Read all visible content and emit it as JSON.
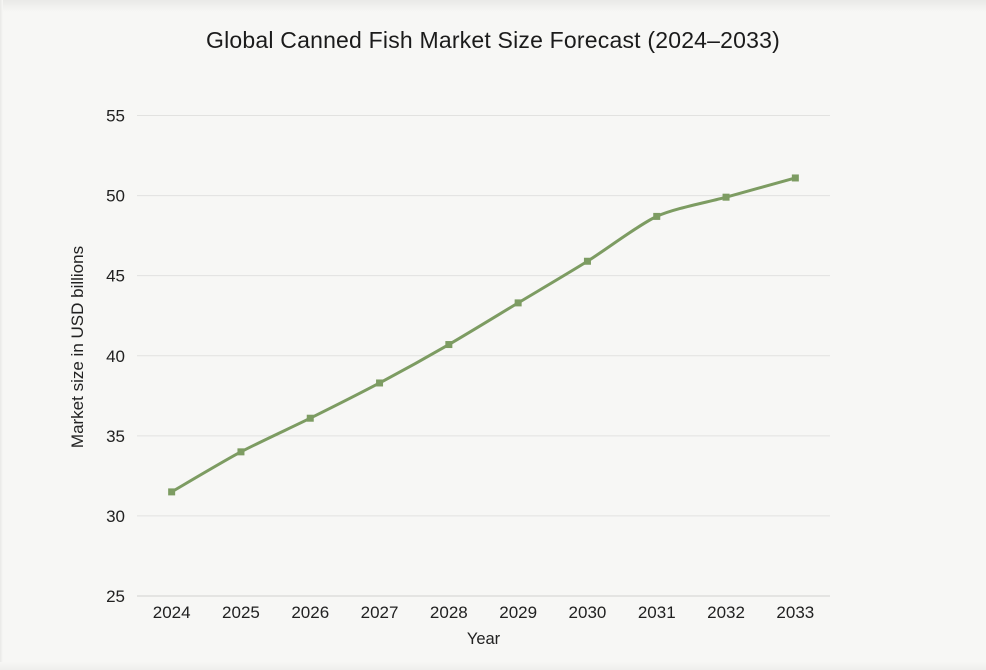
{
  "title": {
    "text": "Global Canned Fish Market Size Forecast (2024–2033)"
  },
  "chart_data": {
    "type": "line",
    "title": "Global Canned Fish Market Size Forecast (2024–2033)",
    "x": [
      2024,
      2025,
      2026,
      2027,
      2028,
      2029,
      2030,
      2031,
      2032,
      2033
    ],
    "series": [
      {
        "name": "Market size in USD billions",
        "values": [
          31.5,
          34.0,
          36.1,
          38.3,
          40.7,
          43.3,
          45.9,
          48.7,
          49.9,
          51.1
        ]
      }
    ],
    "xlabel": "Year",
    "ylabel": "Market size in USD billions",
    "ylim": [
      25,
      55
    ],
    "yticks": [
      25,
      30,
      35,
      40,
      45,
      50,
      55
    ],
    "grid": true,
    "legend": "none",
    "marker": "square",
    "colors": {
      "line": "#7d9c62",
      "marker": "#7d9c62",
      "gridline": "#e2e2e0",
      "axis_line": "#d2d2d0",
      "text": "#212121",
      "title_text": "#1b1b1b",
      "background": "#f7f7f5"
    }
  }
}
